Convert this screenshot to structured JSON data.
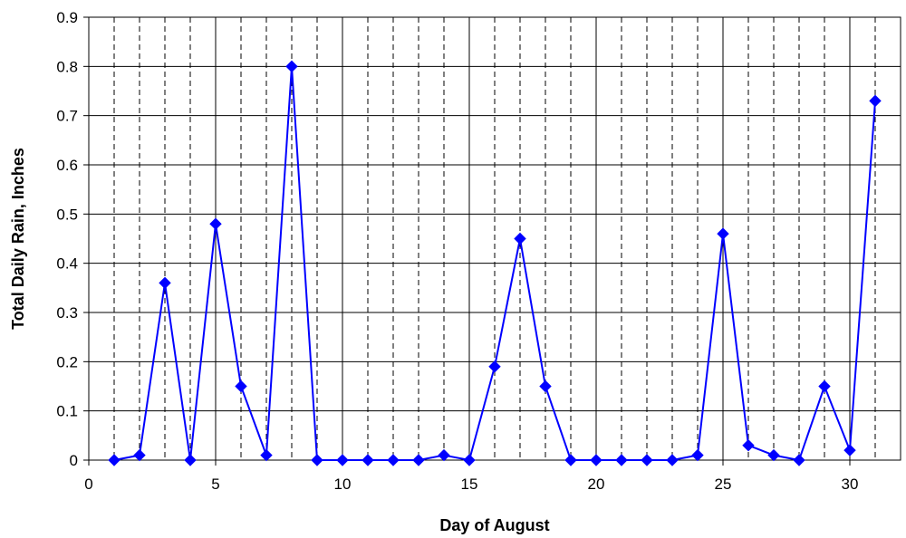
{
  "chart_data": {
    "type": "line",
    "title": "",
    "xlabel": "Day of August",
    "ylabel": "Total Daily Rain, Inches",
    "xlim": [
      0,
      32
    ],
    "ylim": [
      0,
      0.9
    ],
    "x_ticks": [
      "0",
      "5",
      "10",
      "15",
      "20",
      "25",
      "30"
    ],
    "y_ticks": [
      "0",
      "0.1",
      "0.2",
      "0.3",
      "0.4",
      "0.5",
      "0.6",
      "0.7",
      "0.8",
      "0.9"
    ],
    "grid": true,
    "legend": "none",
    "marker": "diamond",
    "color": "#0000FF",
    "series": [
      {
        "x": [
          1,
          2,
          3,
          4,
          5,
          6,
          7,
          8,
          9,
          10,
          11,
          12,
          13,
          14,
          15,
          16,
          17,
          18,
          19,
          20,
          21,
          22,
          23,
          24,
          25,
          26,
          27,
          28,
          29,
          30,
          31
        ],
        "values": [
          0,
          0.01,
          0.36,
          0,
          0.48,
          0.15,
          0.01,
          0.8,
          0,
          0,
          0,
          0,
          0,
          0.01,
          0,
          0.19,
          0.45,
          0.15,
          0,
          0,
          0,
          0,
          0,
          0.01,
          0.46,
          0.03,
          0.01,
          0,
          0.15,
          0.02,
          0.73
        ]
      }
    ]
  }
}
